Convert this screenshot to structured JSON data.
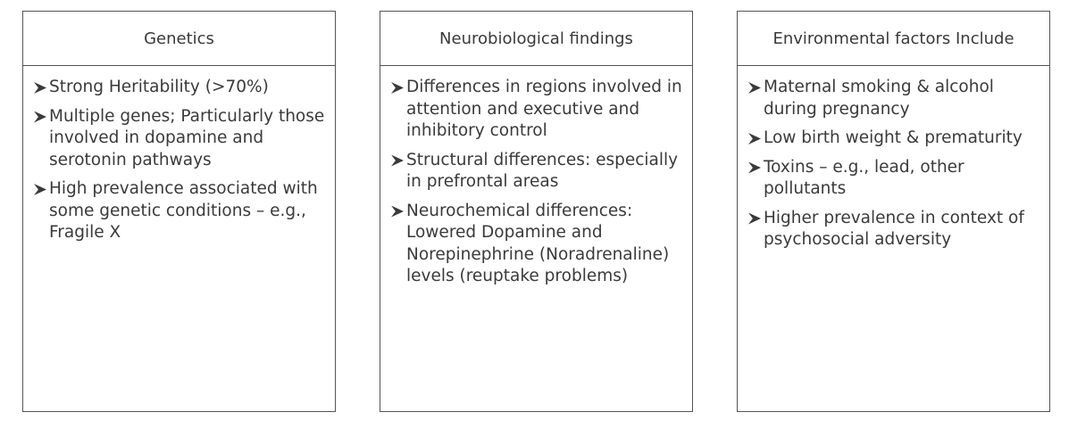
{
  "columns": [
    {
      "title": "Genetics",
      "items": [
        "Strong Heritability (>70%)",
        "Multiple genes; Particularly those involved in dopamine and serotonin pathways",
        "High prevalence associated with some genetic conditions – e.g., Fragile X"
      ]
    },
    {
      "title": "Neurobiological findings",
      "items": [
        "Differences in regions involved in attention and executive and inhibitory control",
        "Structural differences: especially in prefrontal areas",
        "Neurochemical differences: Lowered Dopamine and Norepinephrine (Noradrenaline) levels (reuptake problems)"
      ]
    },
    {
      "title": "Environmental factors Include",
      "items": [
        "Maternal smoking & alcohol during pregnancy",
        "Low birth weight & prematurity",
        "Toxins – e.g., lead, other pollutants",
        "Higher prevalence in context of psychosocial adversity"
      ]
    }
  ]
}
